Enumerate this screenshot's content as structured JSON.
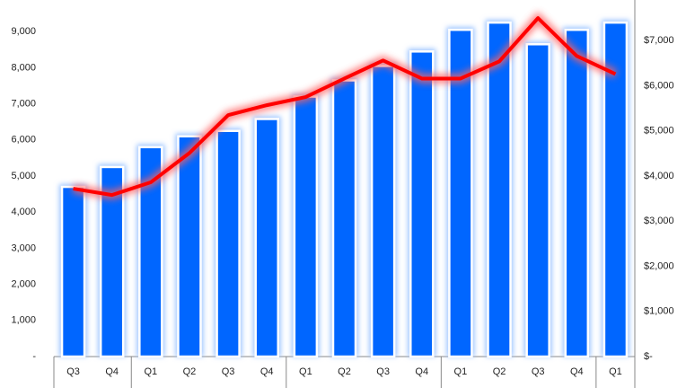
{
  "chart_data": {
    "type": "bar-line",
    "categories": [
      "Q3",
      "Q4",
      "Q1",
      "Q2",
      "Q3",
      "Q4",
      "Q1",
      "Q2",
      "Q3",
      "Q4",
      "Q1",
      "Q2",
      "Q3",
      "Q4",
      "Q1"
    ],
    "series": [
      {
        "type": "bar",
        "color": "#0066ff",
        "values": [
          4700,
          5250,
          5800,
          6100,
          6250,
          6580,
          7200,
          7650,
          8050,
          8450,
          9050,
          9250,
          8650,
          9050,
          9250
        ]
      },
      {
        "type": "line",
        "axis": "y2",
        "color": "#ff0000",
        "values": [
          3720,
          3580,
          3860,
          4510,
          5350,
          5570,
          5750,
          6160,
          6560,
          6160,
          6160,
          6540,
          7500,
          6660,
          6260
        ]
      }
    ],
    "ylim": [
      0,
      10000
    ],
    "yticks": [
      {
        "value": 0,
        "label": "-"
      },
      {
        "value": 1000,
        "label": "1,000"
      },
      {
        "value": 2000,
        "label": "2,000"
      },
      {
        "value": 3000,
        "label": "3,000"
      },
      {
        "value": 4000,
        "label": "4,000"
      },
      {
        "value": 5000,
        "label": "5,000"
      },
      {
        "value": 6000,
        "label": "6,000"
      },
      {
        "value": 7000,
        "label": "7,000"
      },
      {
        "value": 8000,
        "label": "8,000"
      },
      {
        "value": 9000,
        "label": "9,000"
      }
    ],
    "y2lim": [
      0,
      8000
    ],
    "y2ticks": [
      {
        "value": 0,
        "label": "$-"
      },
      {
        "value": 1000,
        "label": "$1,000"
      },
      {
        "value": 2000,
        "label": "$2,000"
      },
      {
        "value": 3000,
        "label": "$3,000"
      },
      {
        "value": 4000,
        "label": "$4,000"
      },
      {
        "value": 5000,
        "label": "$5,000"
      },
      {
        "value": 6000,
        "label": "$6,000"
      },
      {
        "value": 7000,
        "label": "$7,000"
      }
    ]
  }
}
